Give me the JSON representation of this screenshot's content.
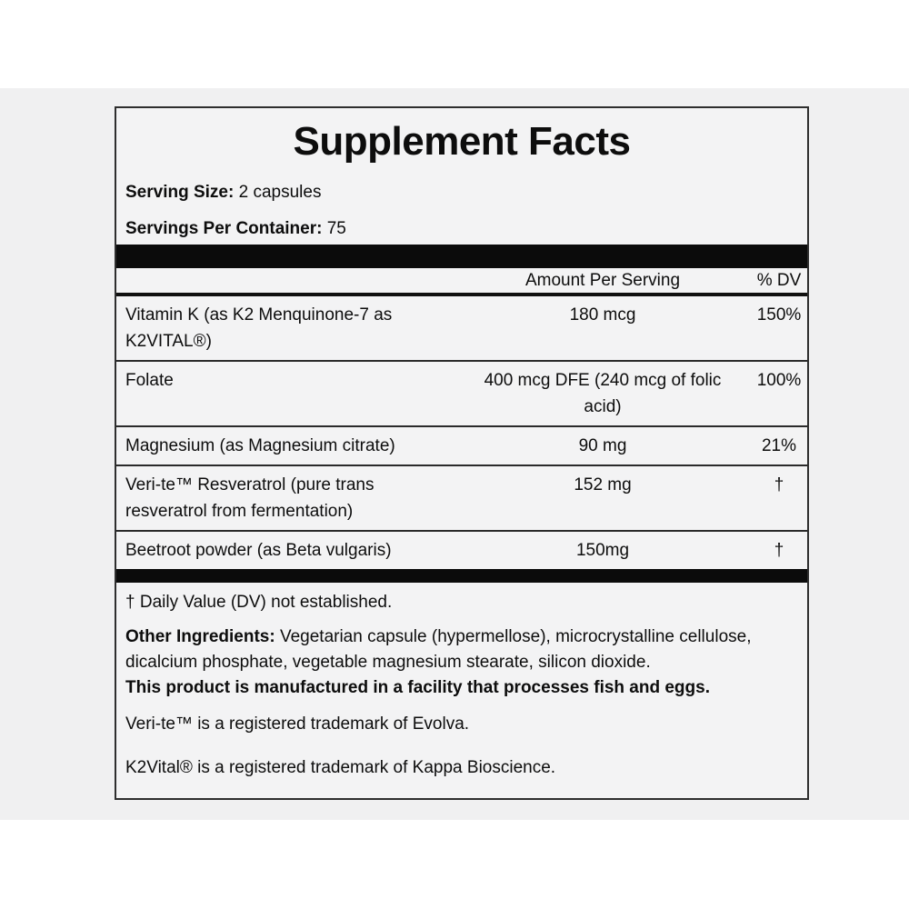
{
  "panel": {
    "title": "Supplement Facts",
    "serving_size": {
      "label": "Serving Size:",
      "value": "2 capsules"
    },
    "servings_per_container": {
      "label": "Servings Per Container:",
      "value": "75"
    },
    "columns": {
      "amount": "Amount Per Serving",
      "dv": "% DV"
    },
    "rows": [
      {
        "name": "Vitamin K (as K2 Menquinone-7 as K2VITAL®)",
        "amount": "180 mcg",
        "dv": "150%"
      },
      {
        "name": "Folate",
        "amount": "400 mcg DFE (240 mcg of folic acid)",
        "dv": "100%"
      },
      {
        "name": "Magnesium (as Magnesium citrate)",
        "amount": "90 mg",
        "dv": "21%"
      },
      {
        "name": "Veri-te™ Resveratrol (pure trans resveratrol from fermentation)",
        "amount": "152 mg",
        "dv": "†"
      },
      {
        "name": "Beetroot powder (as Beta vulgaris)",
        "amount": "150mg",
        "dv": "†"
      }
    ],
    "footnotes": {
      "dv_note": "† Daily Value (DV) not established.",
      "other_ingredients_label": "Other Ingredients:",
      "other_ingredients_text": " Vegetarian capsule (hypermellose), microcrystalline cellulose, dicalcium phosphate, vegetable magnesium stearate, silicon dioxide.",
      "allergen_note": "This product is manufactured in a facility that processes fish and eggs.",
      "trademark_veri_te": "Veri-te™ is a registered trademark of Evolva.",
      "trademark_k2vital": "K2Vital® is a registered trademark of Kappa Bioscience."
    }
  },
  "colors": {
    "page_background": "#ffffff",
    "band_background": "#f0f0f1",
    "panel_background": "#f3f3f4",
    "panel_border": "#2e2e2e",
    "bar_black": "#0b0b0b",
    "text": "#0d0d0d"
  }
}
